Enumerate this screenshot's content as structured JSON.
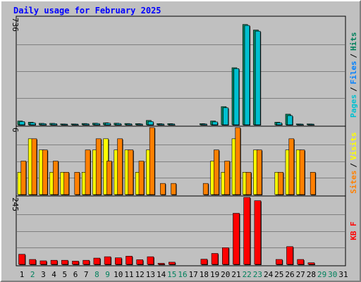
{
  "title": "Daily usage for February 2025",
  "colors": {
    "pages": "#00c0d0",
    "files": "#0080ff",
    "hits": "#00805c",
    "visits": "#ffff00",
    "sites": "#ff8000",
    "kbytes": "#ff0000",
    "weekday_label": "#000000",
    "weekend_label": "#00805c"
  },
  "chart_data": [
    {
      "type": "bar",
      "title": "Daily usage for February 2025",
      "ymax_label": "736",
      "ylim": [
        0,
        736
      ],
      "legend": [
        {
          "name": "Pages",
          "color": "#00c0d0"
        },
        {
          "name": "Files",
          "color": "#0080ff"
        },
        {
          "name": "Hits",
          "color": "#00805c"
        }
      ],
      "categories": [
        "1",
        "2",
        "3",
        "4",
        "5",
        "6",
        "7",
        "8",
        "9",
        "10",
        "11",
        "12",
        "13",
        "14",
        "15",
        "16",
        "17",
        "18",
        "19",
        "20",
        "21",
        "22",
        "23",
        "24",
        "25",
        "26",
        "27",
        "28",
        "29",
        "30",
        "31"
      ],
      "series": [
        {
          "name": "Hits",
          "values": [
            26,
            18,
            10,
            10,
            6,
            6,
            9,
            11,
            14,
            11,
            9,
            8,
            30,
            8,
            8,
            0,
            0,
            8,
            26,
            125,
            392,
            689,
            651,
            0,
            18,
            73,
            6,
            6,
            0,
            0,
            0
          ]
        },
        {
          "name": "Pages",
          "values": [
            22,
            14,
            8,
            8,
            5,
            5,
            7,
            9,
            11,
            9,
            7,
            6,
            22,
            6,
            6,
            0,
            0,
            6,
            20,
            117,
            386,
            682,
            643,
            0,
            14,
            63,
            5,
            5,
            0,
            0,
            0
          ]
        }
      ]
    },
    {
      "type": "bar",
      "ymax_label": "6",
      "ylim": [
        0,
        6
      ],
      "legend": [
        {
          "name": "Sites",
          "color": "#ff8000"
        },
        {
          "name": "Visits",
          "color": "#ffff00"
        }
      ],
      "categories": [
        "1",
        "2",
        "3",
        "4",
        "5",
        "6",
        "7",
        "8",
        "9",
        "10",
        "11",
        "12",
        "13",
        "14",
        "15",
        "16",
        "17",
        "18",
        "19",
        "20",
        "21",
        "22",
        "23",
        "24",
        "25",
        "26",
        "27",
        "28",
        "29",
        "30",
        "31"
      ],
      "series": [
        {
          "name": "Visits",
          "values": [
            2,
            5,
            4,
            2,
            2,
            0,
            2,
            4,
            5,
            4,
            4,
            2,
            4,
            0,
            0,
            0,
            0,
            0,
            3,
            2,
            5,
            2,
            4,
            0,
            2,
            4,
            4,
            0,
            0,
            0,
            0
          ]
        },
        {
          "name": "Sites",
          "values": [
            3,
            5,
            4,
            3,
            2,
            2,
            4,
            5,
            3,
            5,
            4,
            3,
            6,
            1,
            1,
            0,
            0,
            1,
            4,
            3,
            6,
            2,
            4,
            0,
            2,
            5,
            4,
            2,
            0,
            0,
            0
          ]
        }
      ]
    },
    {
      "type": "bar",
      "ymax_label": "245",
      "ylim": [
        0,
        245
      ],
      "legend": [
        {
          "name": "KB F",
          "color": "#ff0000"
        }
      ],
      "categories": [
        "1",
        "2",
        "3",
        "4",
        "5",
        "6",
        "7",
        "8",
        "9",
        "10",
        "11",
        "12",
        "13",
        "14",
        "15",
        "16",
        "17",
        "18",
        "19",
        "20",
        "21",
        "22",
        "23",
        "24",
        "25",
        "26",
        "27",
        "28",
        "29",
        "30",
        "31"
      ],
      "series": [
        {
          "name": "KB F",
          "values": [
            37,
            18,
            13,
            15,
            15,
            12,
            15,
            23,
            28,
            24,
            30,
            17,
            28,
            4,
            8,
            0,
            0,
            19,
            40,
            61,
            187,
            245,
            233,
            0,
            18,
            65,
            18,
            6,
            0,
            0,
            0
          ]
        }
      ]
    }
  ],
  "x_labels": [
    {
      "text": "1",
      "weekend": false
    },
    {
      "text": "2",
      "weekend": true
    },
    {
      "text": "3",
      "weekend": false
    },
    {
      "text": "4",
      "weekend": false
    },
    {
      "text": "5",
      "weekend": false
    },
    {
      "text": "6",
      "weekend": false
    },
    {
      "text": "7",
      "weekend": false
    },
    {
      "text": "8",
      "weekend": true
    },
    {
      "text": "9",
      "weekend": true
    },
    {
      "text": "10",
      "weekend": false
    },
    {
      "text": "11",
      "weekend": false
    },
    {
      "text": "12",
      "weekend": false
    },
    {
      "text": "13",
      "weekend": false
    },
    {
      "text": "14",
      "weekend": false
    },
    {
      "text": "15",
      "weekend": true
    },
    {
      "text": "16",
      "weekend": true
    },
    {
      "text": "17",
      "weekend": false
    },
    {
      "text": "18",
      "weekend": false
    },
    {
      "text": "19",
      "weekend": false
    },
    {
      "text": "20",
      "weekend": false
    },
    {
      "text": "21",
      "weekend": false
    },
    {
      "text": "22",
      "weekend": true
    },
    {
      "text": "23",
      "weekend": true
    },
    {
      "text": "24",
      "weekend": false
    },
    {
      "text": "25",
      "weekend": false
    },
    {
      "text": "26",
      "weekend": false
    },
    {
      "text": "27",
      "weekend": false
    },
    {
      "text": "28",
      "weekend": false
    },
    {
      "text": "29",
      "weekend": true
    },
    {
      "text": "30",
      "weekend": true
    },
    {
      "text": "31",
      "weekend": false
    }
  ]
}
